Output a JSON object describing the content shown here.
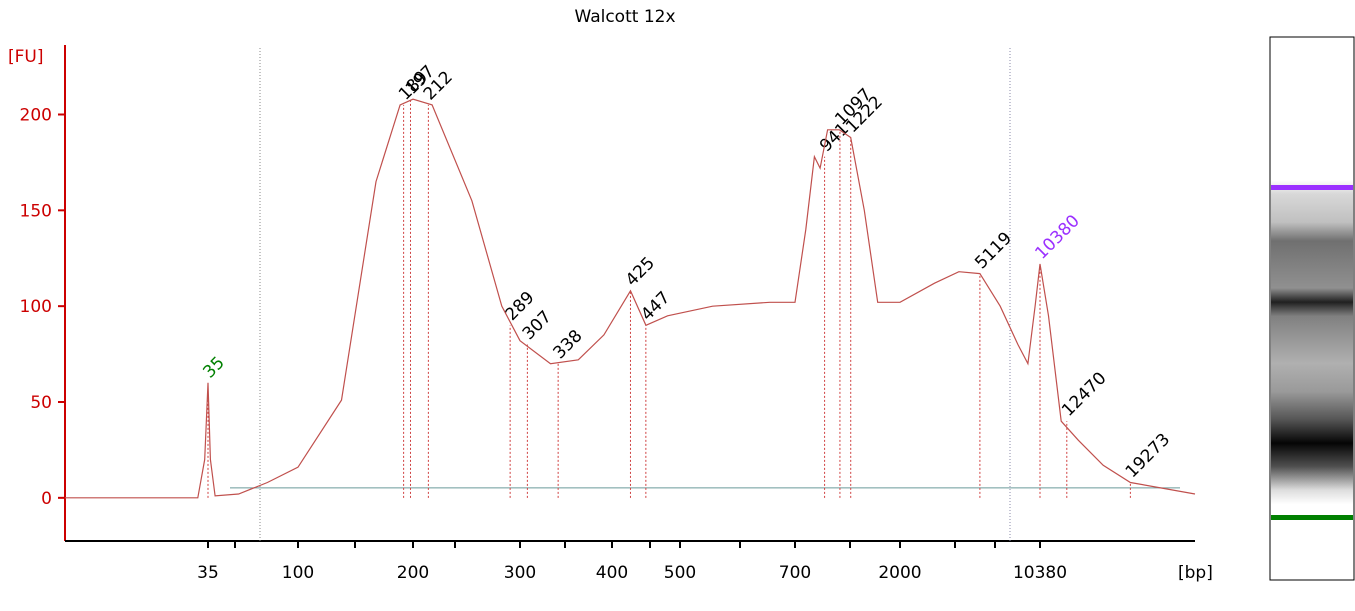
{
  "chart_data": {
    "type": "line",
    "title": "Walcott 12x",
    "y_label": "[FU]",
    "x_label": "[bp]",
    "color": "#c0504d",
    "ylim": [
      -22,
      230
    ],
    "yticks": [
      0,
      50,
      100,
      150,
      200
    ],
    "xlim": [
      10,
      30000
    ],
    "xticks": [
      35,
      100,
      200,
      300,
      400,
      500,
      700,
      2000,
      10380
    ],
    "x": [
      10,
      25,
      32,
      34,
      35,
      36,
      38,
      50,
      70,
      100,
      130,
      160,
      185,
      200,
      215,
      250,
      280,
      300,
      330,
      360,
      390,
      425,
      447,
      480,
      550,
      650,
      700,
      780,
      850,
      900,
      970,
      1090,
      1222,
      1400,
      1600,
      2000,
      3000,
      4000,
      5119,
      6500,
      8000,
      9000,
      9800,
      10380,
      11000,
      12000,
      13500,
      16000,
      19273,
      30000
    ],
    "values": [
      0,
      0,
      0,
      20,
      60,
      20,
      1,
      2,
      8,
      16,
      51,
      165,
      205,
      208,
      205,
      155,
      100,
      82,
      70,
      72,
      85,
      108,
      90,
      95,
      100,
      102,
      102,
      140,
      178,
      172,
      192,
      192,
      188,
      150,
      102,
      102,
      112,
      118,
      117,
      100,
      80,
      70,
      100,
      122,
      95,
      40,
      30,
      17,
      8,
      2
    ],
    "peaks": [
      {
        "bp": 35,
        "fu": 60,
        "color": "#008000"
      },
      {
        "bp": 189,
        "fu": 205
      },
      {
        "bp": 197,
        "fu": 208
      },
      {
        "bp": 212,
        "fu": 205
      },
      {
        "bp": 289,
        "fu": 90
      },
      {
        "bp": 307,
        "fu": 80
      },
      {
        "bp": 338,
        "fu": 70
      },
      {
        "bp": 425,
        "fu": 108
      },
      {
        "bp": 447,
        "fu": 90
      },
      {
        "bp": 941,
        "fu": 178
      },
      {
        "bp": 1097,
        "fu": 192
      },
      {
        "bp": 1222,
        "fu": 188
      },
      {
        "bp": 5119,
        "fu": 117
      },
      {
        "bp": 10380,
        "fu": 122,
        "color": "#9b30ff"
      },
      {
        "bp": 12470,
        "fu": 40
      },
      {
        "bp": 19273,
        "fu": 8
      }
    ]
  }
}
